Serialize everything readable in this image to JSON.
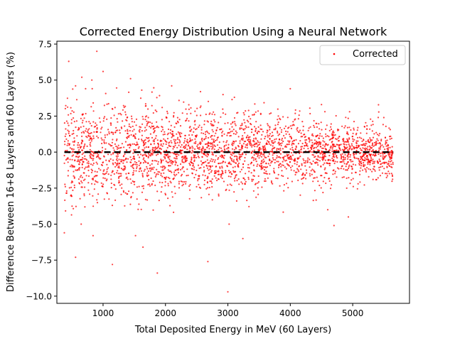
{
  "chart_data": {
    "type": "scatter",
    "title": "Corrected Energy Distribution Using a Neural Network",
    "xlabel": "Total Deposited Energy in MeV (60 Layers)",
    "ylabel": "Difference Between 16+8 Layers and 60 Layers (%)",
    "xlim": [
      260,
      5910
    ],
    "ylim": [
      -10.5,
      7.7
    ],
    "x_ticks": [
      1000,
      2000,
      3000,
      4000,
      5000
    ],
    "y_ticks": [
      7.5,
      5.0,
      2.5,
      0.0,
      -2.5,
      -5.0,
      -7.5,
      -10.0
    ],
    "x_tick_labels": [
      "1000",
      "2000",
      "3000",
      "4000",
      "5000"
    ],
    "y_tick_labels": [
      "7.5",
      "5.0",
      "2.5",
      "0.0",
      "−2.5",
      "−5.0",
      "−7.5",
      "−10.0"
    ],
    "grid": false,
    "legend_position": "top-right",
    "reference_line": {
      "y": 0,
      "x_start": 380,
      "x_end": 5650,
      "style": "dashed",
      "color": "#000000"
    },
    "series": [
      {
        "name": "Corrected",
        "color": "#ff0000",
        "x_range": [
          380,
          5650
        ],
        "approx_point_count": 3000,
        "points": [
          {
            "x": 450,
            "y": 6.3
          },
          {
            "x": 560,
            "y": 4.6
          },
          {
            "x": 660,
            "y": 5.2
          },
          {
            "x": 720,
            "y": 4.4
          },
          {
            "x": 820,
            "y": 5.0
          },
          {
            "x": 900,
            "y": 7.0
          },
          {
            "x": 1000,
            "y": 5.6
          },
          {
            "x": 1440,
            "y": 5.1
          },
          {
            "x": 1620,
            "y": 4.3
          },
          {
            "x": 2100,
            "y": 4.6
          },
          {
            "x": 4000,
            "y": 4.4
          },
          {
            "x": 4500,
            "y": 3.3
          },
          {
            "x": 4950,
            "y": 2.8
          },
          {
            "x": 380,
            "y": -5.6
          },
          {
            "x": 560,
            "y": -7.3
          },
          {
            "x": 650,
            "y": -5.0
          },
          {
            "x": 840,
            "y": -5.8
          },
          {
            "x": 1150,
            "y": -7.8
          },
          {
            "x": 1520,
            "y": -5.8
          },
          {
            "x": 1640,
            "y": -6.6
          },
          {
            "x": 1870,
            "y": -8.4
          },
          {
            "x": 2680,
            "y": -7.6
          },
          {
            "x": 3000,
            "y": -9.7
          },
          {
            "x": 3020,
            "y": -5.0
          },
          {
            "x": 3240,
            "y": -6.0
          },
          {
            "x": 4600,
            "y": -4.0
          },
          {
            "x": 4700,
            "y": -5.1
          },
          {
            "x": 4930,
            "y": -4.5
          }
        ]
      }
    ]
  }
}
